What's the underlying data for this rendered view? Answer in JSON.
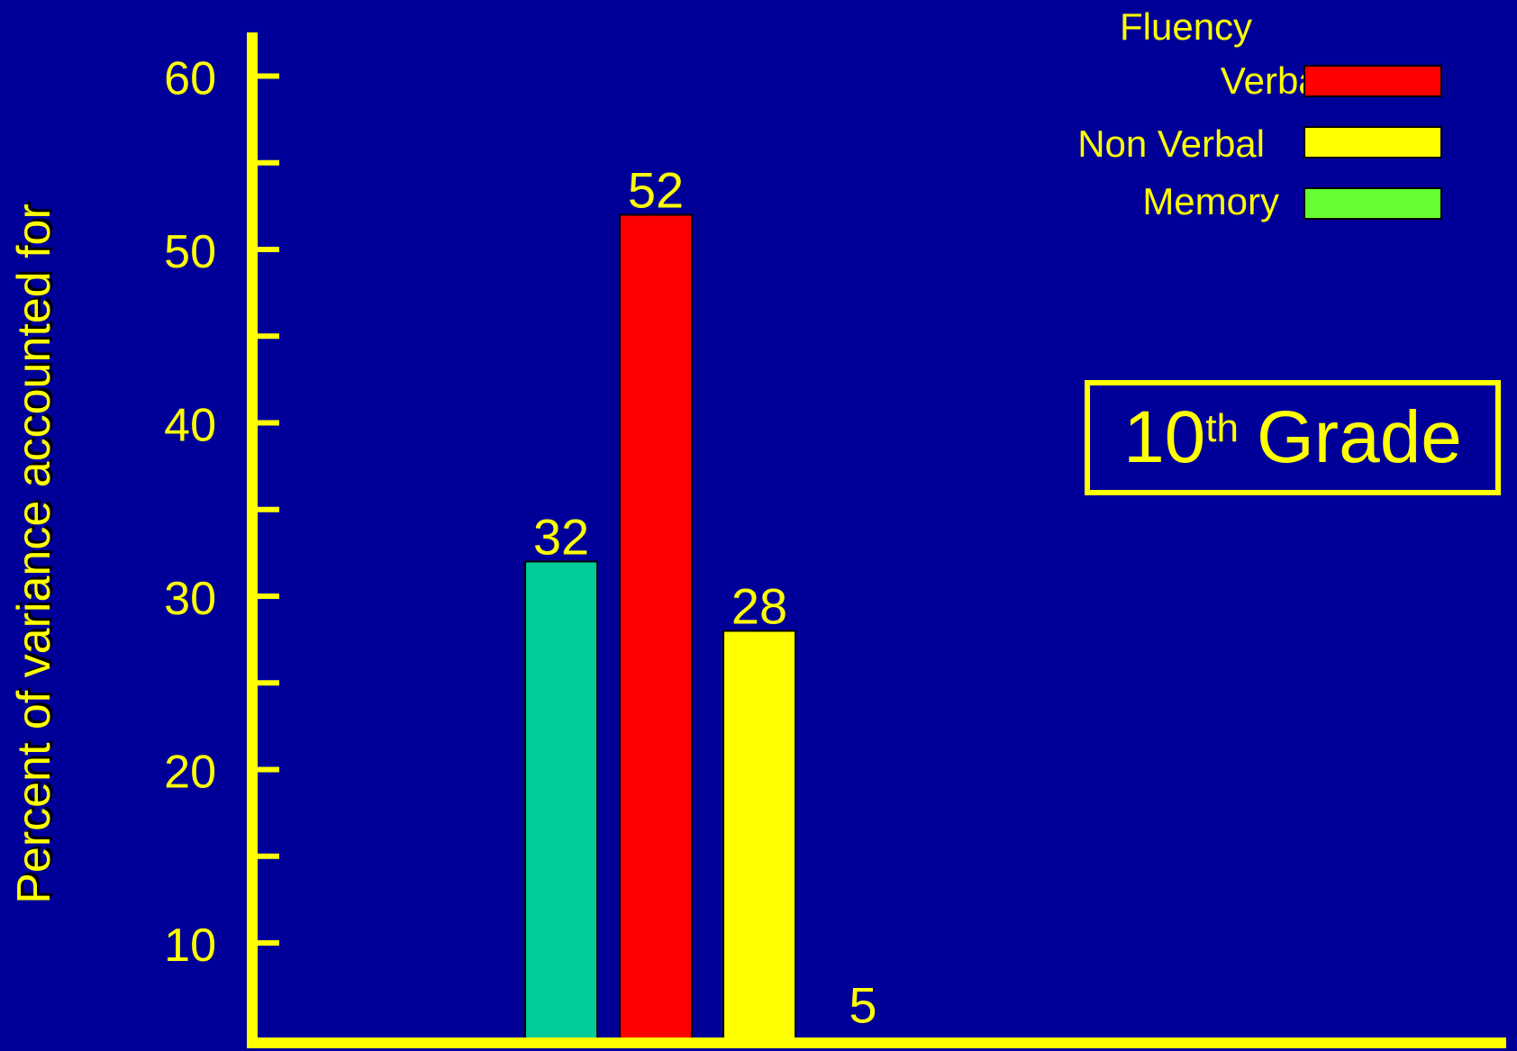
{
  "colors": {
    "background": "#000099",
    "axis": "#ffff00",
    "text": "#ffff00"
  },
  "chart_data": {
    "type": "bar",
    "categories": [
      "",
      "",
      "",
      ""
    ],
    "values": [
      32,
      52,
      28,
      5
    ],
    "value_labels": [
      "32",
      "52",
      "28",
      "5"
    ],
    "bar_colors": [
      "#00cc99",
      "#ff0000",
      "#ffff00",
      null
    ],
    "ylabel": "Percent of variance accounted for",
    "xlabel": "",
    "ylim": [
      5,
      62
    ],
    "yticks": [
      10,
      20,
      30,
      40,
      50,
      60
    ],
    "yminor": [
      15,
      25,
      35,
      45,
      55
    ],
    "legend": {
      "heading": "Fluency",
      "placement": "top-right",
      "entries": [
        {
          "label": "Verbal",
          "color": "#ff0000"
        },
        {
          "label": "Non Verbal",
          "color": "#ffff00"
        },
        {
          "label": "Memory",
          "color": "#66ff33"
        }
      ]
    },
    "annotation": {
      "number": "10",
      "suffix": "th",
      "word": "Grade"
    }
  }
}
